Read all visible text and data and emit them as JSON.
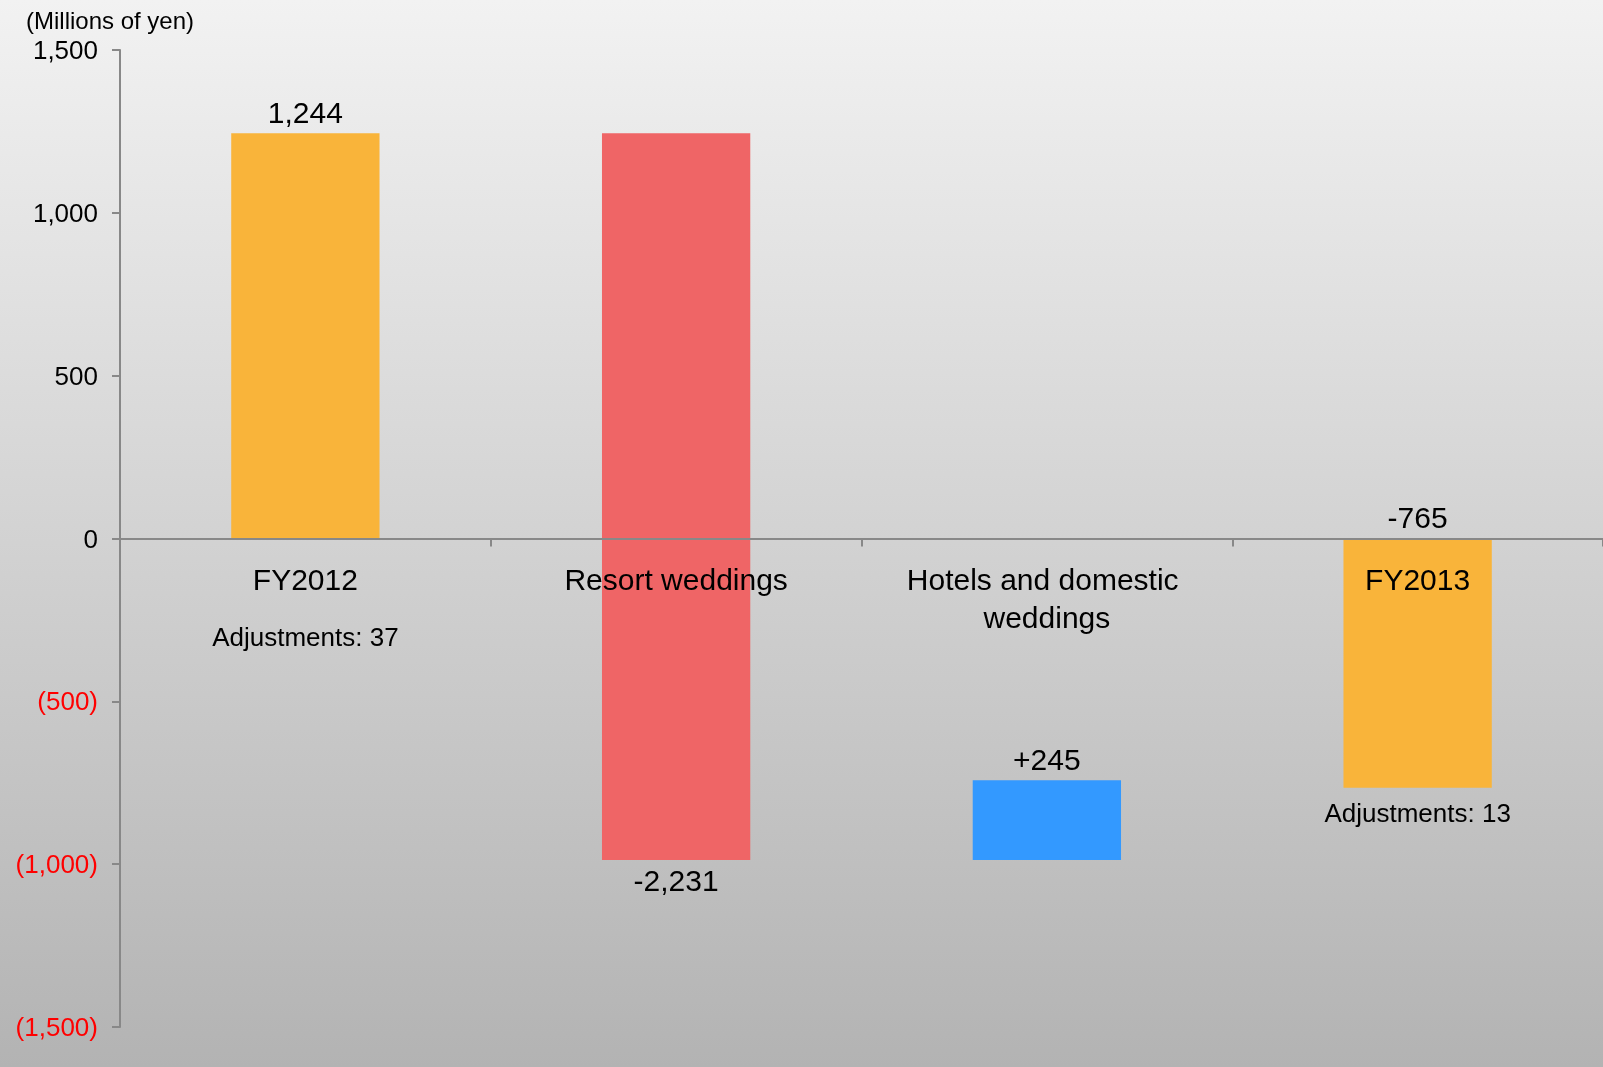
{
  "chart_data": {
    "type": "bar",
    "ylabel": "(Millions of yen)",
    "categories": [
      "FY2012",
      "Resort weddings",
      "Hotels and domestic weddings",
      "FY2013"
    ],
    "base": [
      0,
      1244,
      -987,
      0
    ],
    "values": [
      1244,
      -2231,
      245,
      -765
    ],
    "colors": [
      "#f9b43a",
      "#ef6566",
      "#3399ff",
      "#f9b43a"
    ],
    "value_labels": [
      "1,244",
      "-2,231",
      "+245",
      "-765"
    ],
    "ylim": [
      -1500,
      1500
    ],
    "yticks": [
      {
        "value": -1500,
        "label": "(1,500)"
      },
      {
        "value": -1000,
        "label": "(1,000)"
      },
      {
        "value": -500,
        "label": "(500)"
      },
      0,
      {
        "value": 500,
        "label": "500"
      },
      {
        "value": 1000,
        "label": "1,000"
      },
      {
        "value": 1500,
        "label": "1,500"
      }
    ],
    "annotations": [
      "Adjustments: 37",
      "Adjustments: 13"
    ],
    "grid": false
  }
}
